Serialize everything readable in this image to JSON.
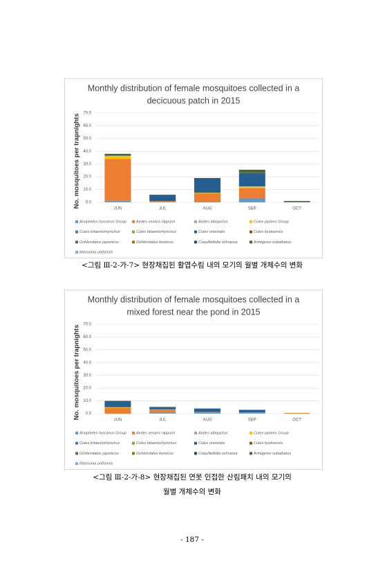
{
  "chart_data": [
    {
      "type": "bar",
      "stacked": true,
      "title": [
        "Monthly distribution of female mosquitoes collected in a",
        "decicuous patch in 2015"
      ],
      "y_label": "No. mosquitoes per trapnights",
      "categories": [
        "JUN",
        "JUL",
        "AUG",
        "SEP",
        "OCT"
      ],
      "ylim": [
        0,
        70
      ],
      "yticks": [
        {
          "value": 0,
          "label": "0.0"
        },
        {
          "value": 10,
          "label": "10.0"
        },
        {
          "value": 20,
          "label": "20.0"
        },
        {
          "value": 30,
          "label": "30.0"
        },
        {
          "value": 40,
          "label": "40.0"
        },
        {
          "value": 50,
          "label": "50.0"
        },
        {
          "value": 60,
          "label": "60.0"
        },
        {
          "value": 70,
          "label": "70.0"
        }
      ],
      "grid": true,
      "series": [
        {
          "name": "Anopheles hyrcanus Group",
          "color": "#5b9bd5",
          "values": [
            1,
            0.5,
            0,
            3,
            0
          ]
        },
        {
          "name": "Aedes vexans nipponii",
          "color": "#ed7d31",
          "values": [
            33,
            0.5,
            7,
            8,
            0
          ]
        },
        {
          "name": "Aedes albopictus",
          "color": "#a5a5a5",
          "values": [
            0,
            0,
            0,
            0.5,
            0
          ]
        },
        {
          "name": "Culex pipiens Group",
          "color": "#ffc000",
          "values": [
            2.5,
            0,
            0.5,
            1,
            0
          ]
        },
        {
          "name": "Culex tritaeniorhynchus",
          "color": "#4472c4",
          "values": [
            0,
            0,
            0,
            0,
            0
          ]
        },
        {
          "name": "Culex bitaeniorhynchus",
          "color": "#70ad47",
          "values": [
            0,
            0,
            0,
            0,
            0
          ]
        },
        {
          "name": "Culex orientalis",
          "color": "#255e91",
          "values": [
            1,
            4.5,
            11,
            10,
            0
          ]
        },
        {
          "name": "Culex kyotoensis",
          "color": "#9e480e",
          "values": [
            0,
            0,
            0,
            0,
            0
          ]
        },
        {
          "name": "Ochlerotatus japonicus",
          "color": "#636363",
          "values": [
            0,
            0,
            0,
            1,
            0.5
          ]
        },
        {
          "name": "Ochlerotatus koreicus",
          "color": "#997300",
          "values": [
            0,
            0,
            0,
            0,
            0
          ]
        },
        {
          "name": "Coquillettidia ochracea",
          "color": "#264478",
          "values": [
            0,
            0,
            0.5,
            0,
            0
          ]
        },
        {
          "name": "Armigeres subalbatus",
          "color": "#43682b",
          "values": [
            0.5,
            0.5,
            0,
            2,
            0.5
          ]
        },
        {
          "name": "Mansonia uniformis",
          "color": "#7cafdd",
          "values": [
            0,
            0,
            0,
            0,
            0
          ]
        }
      ]
    },
    {
      "type": "bar",
      "stacked": true,
      "title": [
        "Monthly distribution of female mosquitoes collected in  a",
        "mixed forest near the pond in 2015"
      ],
      "y_label": "No. mosquitoes per trapnights",
      "categories": [
        "JUN",
        "JUL",
        "AUG",
        "SEP",
        "OCT"
      ],
      "ylim": [
        0,
        70
      ],
      "yticks": [
        {
          "value": 0,
          "label": "0.0"
        },
        {
          "value": 10,
          "label": "10.0"
        },
        {
          "value": 20,
          "label": "20.0"
        },
        {
          "value": 30,
          "label": "30.0"
        },
        {
          "value": 40,
          "label": "40.0"
        },
        {
          "value": 50,
          "label": "50.0"
        },
        {
          "value": 60,
          "label": "60.0"
        },
        {
          "value": 70,
          "label": "70.0"
        }
      ],
      "grid": true,
      "series": [
        {
          "name": "Anopheles hyrcanus Group",
          "color": "#5b9bd5",
          "values": [
            0,
            0.5,
            1,
            0.5,
            0
          ]
        },
        {
          "name": "Aedes vexans nipponii",
          "color": "#ed7d31",
          "values": [
            4.5,
            2.5,
            0.3,
            0.5,
            0.5
          ]
        },
        {
          "name": "Aedes albopictus",
          "color": "#a5a5a5",
          "values": [
            0,
            0,
            0,
            0,
            0
          ]
        },
        {
          "name": "Culex pipiens Group",
          "color": "#ffc000",
          "values": [
            0.5,
            0.3,
            0,
            0,
            0
          ]
        },
        {
          "name": "Culex tritaeniorhynchus",
          "color": "#4472c4",
          "values": [
            0,
            0,
            0,
            0,
            0
          ]
        },
        {
          "name": "Culex bitaeniorhynchus",
          "color": "#70ad47",
          "values": [
            0,
            0,
            0,
            0,
            0
          ]
        },
        {
          "name": "Culex orientalis",
          "color": "#255e91",
          "values": [
            4.5,
            1.5,
            2.7,
            2,
            0
          ]
        },
        {
          "name": "Culex kyotoensis",
          "color": "#9e480e",
          "values": [
            0,
            0,
            0,
            0,
            0
          ]
        },
        {
          "name": "Ochlerotatus japonicus",
          "color": "#636363",
          "values": [
            0,
            0,
            0,
            0,
            0
          ]
        },
        {
          "name": "Ochlerotatus koreicus",
          "color": "#997300",
          "values": [
            0,
            0,
            0,
            0,
            0
          ]
        },
        {
          "name": "Coquillettidia ochracea",
          "color": "#264478",
          "values": [
            0,
            0,
            0,
            0,
            0
          ]
        },
        {
          "name": "Armigeres subalbatus",
          "color": "#43682b",
          "values": [
            0.5,
            0.5,
            0,
            0,
            0
          ]
        },
        {
          "name": "Mansonia uniformis",
          "color": "#7cafdd",
          "values": [
            0,
            0,
            0,
            0,
            0
          ]
        }
      ]
    }
  ],
  "captions": [
    [
      "<그림 Ⅲ-2-가-7> 현장채집된 활엽수림 내의 모기의 월별 개체수의 변화"
    ],
    [
      "<그림 Ⅲ-2-가-8> 현장채집된 연못 인접한 산림패치 내의 모기의",
      "월별 개체수의 변화"
    ]
  ],
  "page_number": "- 187 -"
}
